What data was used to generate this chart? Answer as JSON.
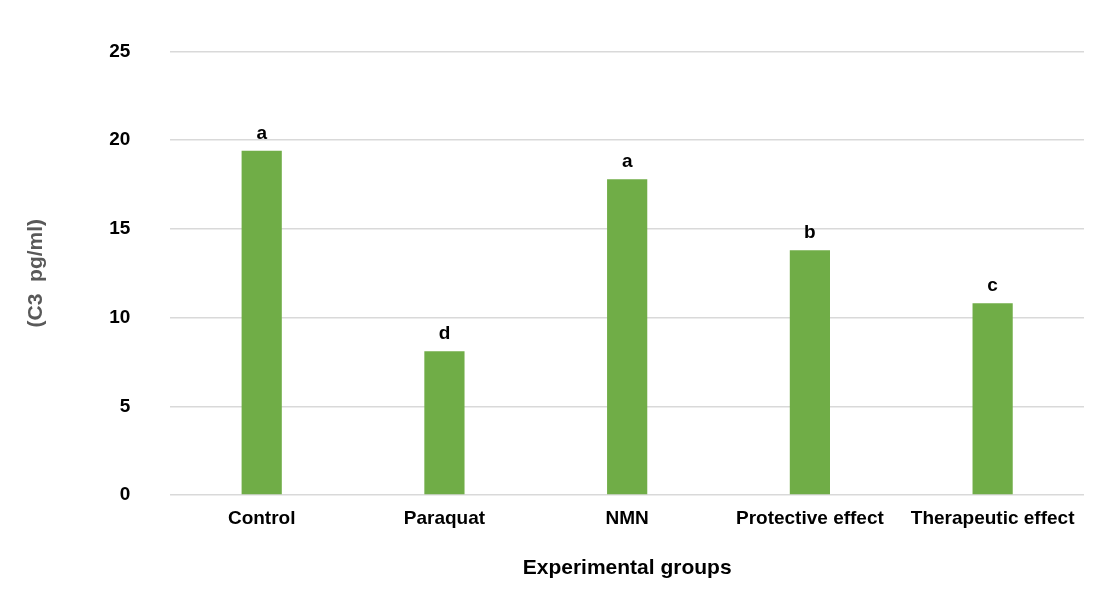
{
  "chart_data": {
    "type": "bar",
    "xlabel": "Experimental groups",
    "ylabel": "(C3  pg/ml)",
    "categories": [
      "Control",
      "Paraquat",
      "NMN",
      "Protective effect",
      "Therapeutic effect"
    ],
    "values": [
      19.4,
      8.1,
      17.8,
      13.8,
      10.8
    ],
    "color": "#70ad47",
    "ylim": [
      0,
      25
    ],
    "yticks": [
      0,
      5,
      10,
      15,
      20,
      25
    ],
    "grid": "y",
    "legend": false,
    "annotations": [
      {
        "text": "a",
        "x": "Control",
        "y": 19.4
      },
      {
        "text": "d",
        "x": "Paraquat",
        "y": 8.1
      },
      {
        "text": "a",
        "x": "NMN",
        "y": 17.8
      },
      {
        "text": "b",
        "x": "Protective effect",
        "y": 13.8
      },
      {
        "text": "c",
        "x": "Therapeutic effect",
        "y": 10.8
      }
    ]
  }
}
